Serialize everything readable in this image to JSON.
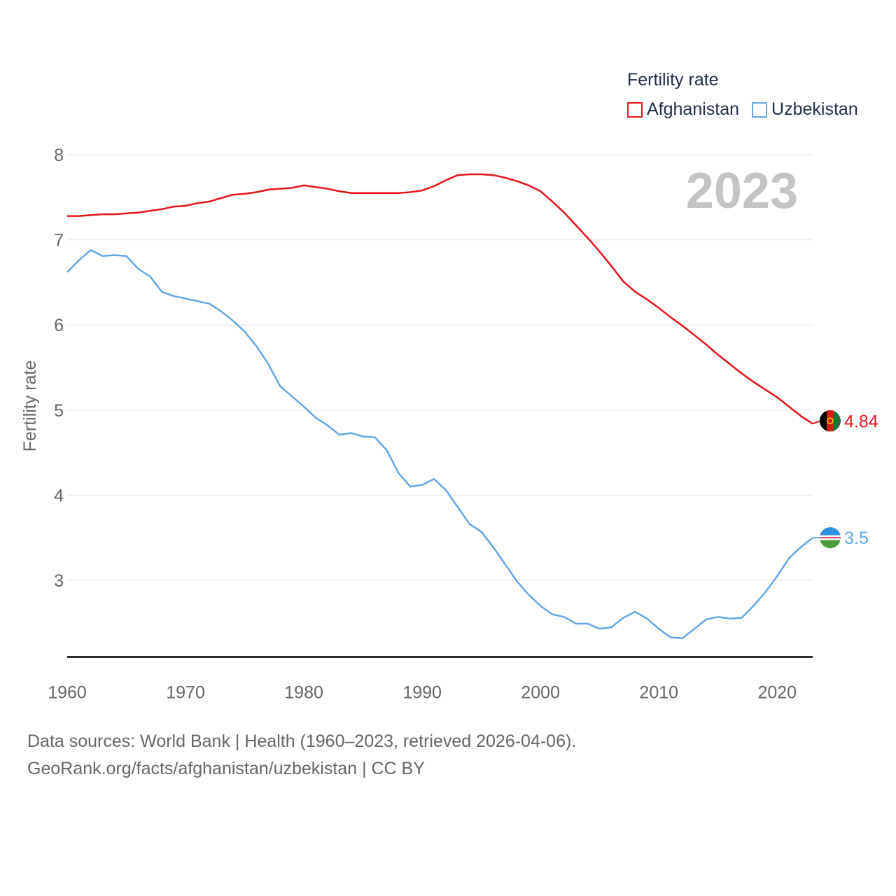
{
  "legend": {
    "title": "Fertility rate",
    "items": [
      {
        "label": "Afghanistan",
        "color": "#e8141b"
      },
      {
        "label": "Uzbekistan",
        "color": "#62a8e8"
      }
    ]
  },
  "year_label": "2023",
  "end_labels": {
    "afghanistan": "4.84",
    "uzbekistan": "3.5"
  },
  "source": {
    "line1": "Data sources: World Bank | Health (1960–2023, retrieved 2026-04-06).",
    "line2": "GeoRank.org/facts/afghanistan/uzbekistan | CC BY"
  },
  "chart_data": {
    "type": "line",
    "title": "",
    "xlabel": "",
    "ylabel": "Fertility rate",
    "xlim": [
      1960,
      2023
    ],
    "ylim": [
      2.1,
      8
    ],
    "x_ticks": [
      1960,
      1970,
      1980,
      1990,
      2000,
      2010,
      2020
    ],
    "y_ticks": [
      3,
      4,
      5,
      6,
      7,
      8
    ],
    "grid": true,
    "legend": "top-right",
    "x": [
      1960,
      1961,
      1962,
      1963,
      1964,
      1965,
      1966,
      1967,
      1968,
      1969,
      1970,
      1971,
      1972,
      1973,
      1974,
      1975,
      1976,
      1977,
      1978,
      1979,
      1980,
      1981,
      1982,
      1983,
      1984,
      1985,
      1986,
      1987,
      1988,
      1989,
      1990,
      1991,
      1992,
      1993,
      1994,
      1995,
      1996,
      1997,
      1998,
      1999,
      2000,
      2001,
      2002,
      2003,
      2004,
      2005,
      2006,
      2007,
      2008,
      2009,
      2010,
      2011,
      2012,
      2013,
      2014,
      2015,
      2016,
      2017,
      2018,
      2019,
      2020,
      2021,
      2022,
      2023
    ],
    "series": [
      {
        "name": "Afghanistan",
        "color": "#e8141b",
        "values": [
          7.28,
          7.28,
          7.29,
          7.3,
          7.3,
          7.31,
          7.32,
          7.34,
          7.36,
          7.39,
          7.4,
          7.43,
          7.45,
          7.49,
          7.53,
          7.54,
          7.56,
          7.59,
          7.6,
          7.61,
          7.64,
          7.62,
          7.6,
          7.57,
          7.55,
          7.55,
          7.55,
          7.55,
          7.55,
          7.56,
          7.58,
          7.63,
          7.7,
          7.76,
          7.77,
          7.77,
          7.76,
          7.73,
          7.69,
          7.64,
          7.57,
          7.45,
          7.32,
          7.17,
          7.02,
          6.86,
          6.69,
          6.51,
          6.39,
          6.3,
          6.2,
          6.09,
          5.99,
          5.88,
          5.77,
          5.65,
          5.54,
          5.43,
          5.33,
          5.24,
          5.15,
          5.04,
          4.93,
          4.84
        ]
      },
      {
        "name": "Uzbekistan",
        "color": "#62a8e8",
        "values": [
          6.62,
          6.76,
          6.88,
          6.81,
          6.82,
          6.81,
          6.66,
          6.57,
          6.39,
          6.34,
          6.31,
          6.28,
          6.25,
          6.16,
          6.05,
          5.92,
          5.75,
          5.54,
          5.28,
          5.16,
          5.04,
          4.91,
          4.82,
          4.71,
          4.73,
          4.69,
          4.68,
          4.53,
          4.26,
          4.1,
          4.12,
          4.19,
          4.06,
          3.86,
          3.66,
          3.57,
          3.39,
          3.19,
          2.99,
          2.83,
          2.7,
          2.6,
          2.57,
          2.49,
          2.49,
          2.43,
          2.45,
          2.56,
          2.63,
          2.55,
          2.43,
          2.33,
          2.32,
          2.43,
          2.54,
          2.57,
          2.55,
          2.56,
          2.7,
          2.86,
          3.05,
          3.26,
          3.39,
          3.5
        ]
      }
    ]
  }
}
